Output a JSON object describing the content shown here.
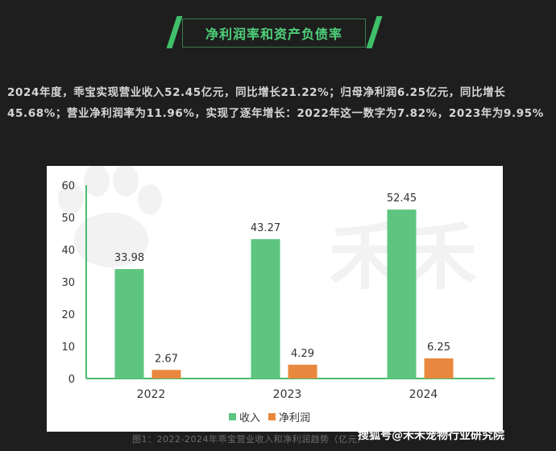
{
  "header": {
    "title": "净利润率和资产负债率"
  },
  "intro": {
    "text": "2024年度，乖宝实现营业收入52.45亿元，同比增长21.22%；归母净利润6.25亿元，同比增长45.68%；营业净利润率为11.96%，实现了逐年增长：2022年这一数字为7.82%，2023年为9.95%"
  },
  "chart_data": {
    "type": "bar",
    "categories": [
      "2022",
      "2023",
      "2024"
    ],
    "series": [
      {
        "name": "收入",
        "values": [
          33.98,
          43.27,
          52.45
        ],
        "color": "#5dc57f"
      },
      {
        "name": "净利润",
        "values": [
          2.67,
          4.29,
          6.25
        ],
        "color": "#e8883e"
      }
    ],
    "yticks": [
      0,
      10,
      20,
      30,
      40,
      50,
      60
    ],
    "ylim": [
      0,
      60
    ],
    "legend": "bottom",
    "title": "",
    "xlabel": "",
    "ylabel": ""
  },
  "watermark": {
    "text": "禾禾"
  },
  "caption": {
    "text": "图1：2022-2024年乖宝营业收入和净利润趋势（亿元）"
  },
  "source": {
    "text": "搜狐号@禾禾宠物行业研究院"
  }
}
